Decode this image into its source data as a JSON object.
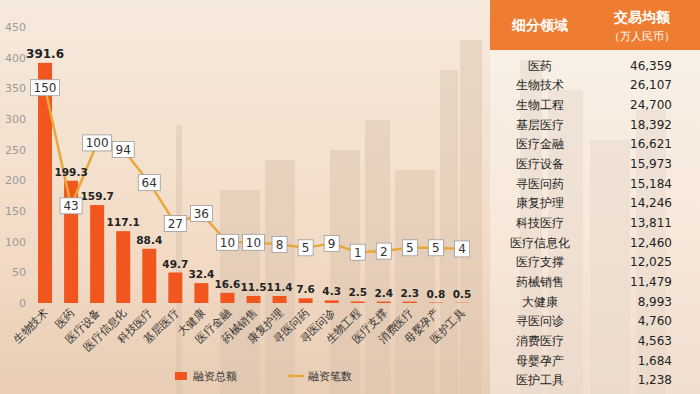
{
  "chart_data": {
    "type": "bar",
    "categories": [
      "生物技术",
      "医药",
      "医疗设备",
      "医疗信息化",
      "科技医疗",
      "基层医疗",
      "大健康",
      "医疗金融",
      "药械销售",
      "康复护理",
      "寻医问药",
      "寻医问诊",
      "生物工程",
      "医疗支撑",
      "消费医疗",
      "母婴孕产",
      "医护工具"
    ],
    "series": [
      {
        "name": "融资总额",
        "type": "bar",
        "color": "#f0561d",
        "values": [
          391.6,
          199.3,
          159.7,
          117.1,
          88.4,
          49.7,
          32.4,
          16.6,
          11.5,
          11.4,
          7.6,
          4.3,
          2.5,
          2.4,
          2.3,
          0.8,
          0.5
        ]
      },
      {
        "name": "融资笔数",
        "type": "line",
        "color": "#e6a93a",
        "axis": "y2",
        "marker": "none",
        "values": [
          150,
          43,
          100,
          94,
          64,
          27,
          36,
          10,
          10,
          8,
          5,
          9,
          1,
          2,
          5,
          5,
          4
        ]
      }
    ],
    "ylim": [
      0,
      450
    ],
    "yticks": [
      0,
      50,
      100,
      150,
      200,
      250,
      300,
      350,
      400,
      450
    ],
    "y2lim": [
      -45,
      205
    ],
    "grid": false,
    "legend": "bottom",
    "data_labels": true
  },
  "table": {
    "header": [
      "细分领域",
      "交易均额",
      "（万人民币）"
    ],
    "rows": [
      [
        "医药",
        "46,359"
      ],
      [
        "生物技术",
        "26,107"
      ],
      [
        "生物工程",
        "24,700"
      ],
      [
        "基层医疗",
        "18,392"
      ],
      [
        "医疗金融",
        "16,621"
      ],
      [
        "医疗设备",
        "15,973"
      ],
      [
        "寻医问药",
        "15,184"
      ],
      [
        "康复护理",
        "14,246"
      ],
      [
        "科技医疗",
        "13,811"
      ],
      [
        "医疗信息化",
        "12,460"
      ],
      [
        "医疗支撑",
        "12,025"
      ],
      [
        "药械销售",
        "11,479"
      ],
      [
        "大健康",
        "8,993"
      ],
      [
        "寻医问诊",
        "4,760"
      ],
      [
        "消费医疗",
        "4,563"
      ],
      [
        "母婴孕产",
        "1,684"
      ],
      [
        "医护工具",
        "1,238"
      ]
    ]
  }
}
